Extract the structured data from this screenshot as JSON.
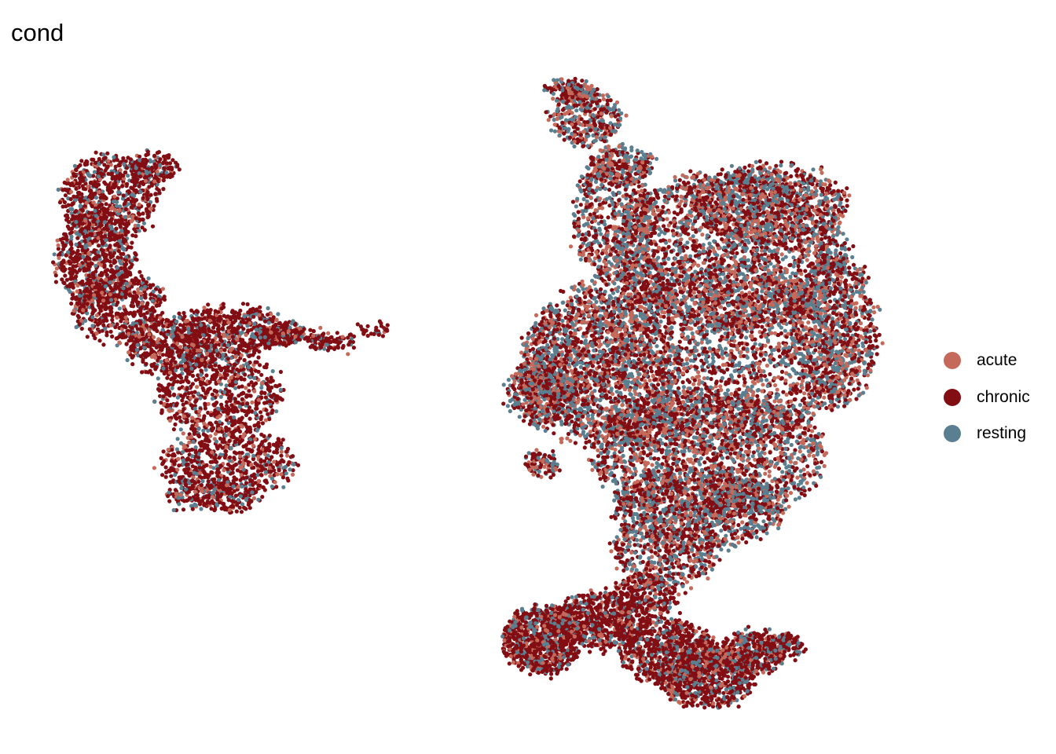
{
  "chart_data": {
    "type": "scatter",
    "title": "cond",
    "xlabel": "",
    "ylabel": "",
    "grid": false,
    "axes_visible": false,
    "legend_position": "right",
    "legend": [
      {
        "name": "acute",
        "color": "#C56A5A"
      },
      {
        "name": "chronic",
        "color": "#820E14"
      },
      {
        "name": "resting",
        "color": "#5A7F90"
      }
    ],
    "series": [
      {
        "name": "acute",
        "color": "#C56A5A",
        "relative_frequency": 0.22
      },
      {
        "name": "chronic",
        "color": "#820E14",
        "relative_frequency": 0.45
      },
      {
        "name": "resting",
        "color": "#5A7F90",
        "relative_frequency": 0.33
      }
    ],
    "clusters": [
      {
        "name_hint": "left-crescent",
        "chronic_bias": 0.72
      },
      {
        "name_hint": "right-large",
        "chronic_bias": 0.42
      },
      {
        "name_hint": "bottom-lobes",
        "chronic_bias": 0.7
      }
    ]
  }
}
